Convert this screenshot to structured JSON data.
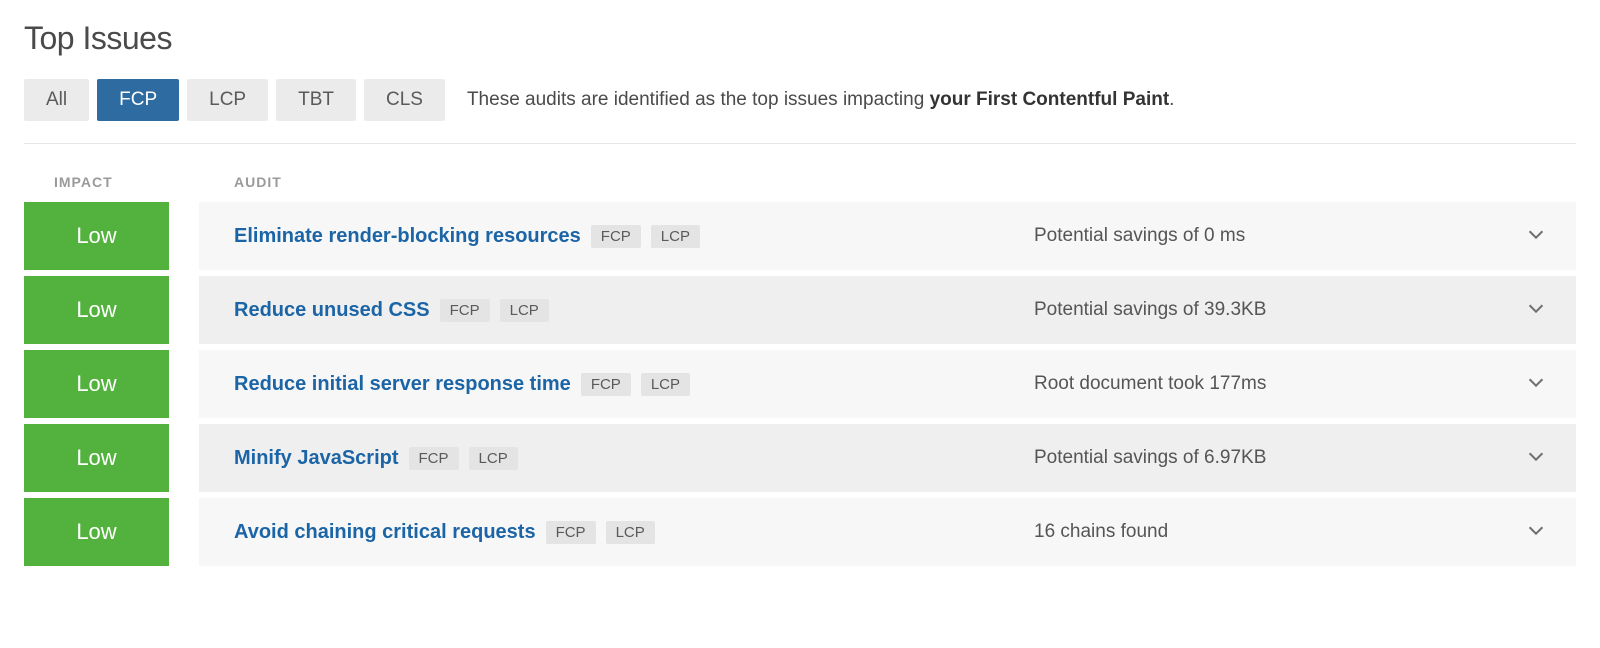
{
  "title": "Top Issues",
  "tabs": [
    {
      "label": "All",
      "active": false
    },
    {
      "label": "FCP",
      "active": true
    },
    {
      "label": "LCP",
      "active": false
    },
    {
      "label": "TBT",
      "active": false
    },
    {
      "label": "CLS",
      "active": false
    }
  ],
  "description_prefix": "These audits are identified as the top issues impacting ",
  "description_strong": "your First Contentful Paint",
  "description_suffix": ".",
  "columns": {
    "impact": "IMPACT",
    "audit": "AUDIT"
  },
  "colors": {
    "impact_low_bg": "#53b13e",
    "tab_active_bg": "#2e6ba1",
    "tab_inactive_bg": "#ebebeb",
    "row_bg": "#f7f7f7",
    "row_alt_bg": "#efefef",
    "link": "#1b64a6",
    "tag_bg": "#e4e4e4"
  },
  "rows": [
    {
      "impact": "Low",
      "audit": "Eliminate render-blocking resources",
      "tags": [
        "FCP",
        "LCP"
      ],
      "detail": "Potential savings of 0 ms",
      "alt": false
    },
    {
      "impact": "Low",
      "audit": "Reduce unused CSS",
      "tags": [
        "FCP",
        "LCP"
      ],
      "detail": "Potential savings of 39.3KB",
      "alt": true
    },
    {
      "impact": "Low",
      "audit": "Reduce initial server response time",
      "tags": [
        "FCP",
        "LCP"
      ],
      "detail": "Root document took 177ms",
      "alt": false
    },
    {
      "impact": "Low",
      "audit": "Minify JavaScript",
      "tags": [
        "FCP",
        "LCP"
      ],
      "detail": "Potential savings of 6.97KB",
      "alt": true
    },
    {
      "impact": "Low",
      "audit": "Avoid chaining critical requests",
      "tags": [
        "FCP",
        "LCP"
      ],
      "detail": "16 chains found",
      "alt": false
    }
  ]
}
